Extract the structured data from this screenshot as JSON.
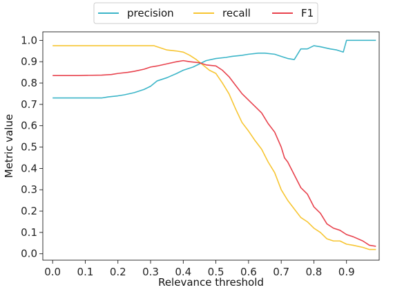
{
  "chart_data": {
    "type": "line",
    "xlabel": "Relevance threshold",
    "ylabel": "Metric value",
    "xlim": [
      -0.03,
      1.0
    ],
    "ylim": [
      -0.03,
      1.04
    ],
    "x_ticks": [
      "0.0",
      "0.1",
      "0.2",
      "0.3",
      "0.4",
      "0.5",
      "0.6",
      "0.7",
      "0.8",
      "0.9"
    ],
    "y_ticks": [
      "0.0",
      "0.1",
      "0.2",
      "0.3",
      "0.4",
      "0.5",
      "0.6",
      "0.7",
      "0.8",
      "0.9",
      "1.0"
    ],
    "grid": false,
    "legend_placement": "top-center",
    "series": [
      {
        "name": "precision",
        "color": "#3bb5c8",
        "points": [
          [
            0.0,
            0.73
          ],
          [
            0.08,
            0.73
          ],
          [
            0.1,
            0.73
          ],
          [
            0.15,
            0.73
          ],
          [
            0.17,
            0.735
          ],
          [
            0.2,
            0.74
          ],
          [
            0.22,
            0.745
          ],
          [
            0.25,
            0.755
          ],
          [
            0.28,
            0.77
          ],
          [
            0.3,
            0.785
          ],
          [
            0.32,
            0.81
          ],
          [
            0.35,
            0.825
          ],
          [
            0.38,
            0.845
          ],
          [
            0.4,
            0.86
          ],
          [
            0.43,
            0.875
          ],
          [
            0.45,
            0.89
          ],
          [
            0.47,
            0.905
          ],
          [
            0.5,
            0.915
          ],
          [
            0.53,
            0.92
          ],
          [
            0.55,
            0.925
          ],
          [
            0.58,
            0.93
          ],
          [
            0.6,
            0.935
          ],
          [
            0.63,
            0.94
          ],
          [
            0.65,
            0.94
          ],
          [
            0.68,
            0.935
          ],
          [
            0.7,
            0.925
          ],
          [
            0.72,
            0.915
          ],
          [
            0.74,
            0.91
          ],
          [
            0.76,
            0.96
          ],
          [
            0.78,
            0.96
          ],
          [
            0.8,
            0.975
          ],
          [
            0.82,
            0.97
          ],
          [
            0.85,
            0.96
          ],
          [
            0.87,
            0.955
          ],
          [
            0.89,
            0.945
          ],
          [
            0.9,
            1.0
          ],
          [
            0.92,
            1.0
          ],
          [
            0.95,
            1.0
          ],
          [
            0.99,
            1.0
          ]
        ]
      },
      {
        "name": "recall",
        "color": "#f7c531",
        "points": [
          [
            0.0,
            0.975
          ],
          [
            0.1,
            0.975
          ],
          [
            0.2,
            0.975
          ],
          [
            0.3,
            0.975
          ],
          [
            0.31,
            0.975
          ],
          [
            0.33,
            0.965
          ],
          [
            0.35,
            0.955
          ],
          [
            0.38,
            0.95
          ],
          [
            0.4,
            0.945
          ],
          [
            0.42,
            0.93
          ],
          [
            0.44,
            0.91
          ],
          [
            0.46,
            0.885
          ],
          [
            0.48,
            0.86
          ],
          [
            0.5,
            0.845
          ],
          [
            0.52,
            0.8
          ],
          [
            0.54,
            0.75
          ],
          [
            0.56,
            0.68
          ],
          [
            0.58,
            0.615
          ],
          [
            0.6,
            0.575
          ],
          [
            0.62,
            0.53
          ],
          [
            0.64,
            0.49
          ],
          [
            0.66,
            0.43
          ],
          [
            0.68,
            0.38
          ],
          [
            0.7,
            0.3
          ],
          [
            0.72,
            0.25
          ],
          [
            0.74,
            0.21
          ],
          [
            0.76,
            0.17
          ],
          [
            0.78,
            0.15
          ],
          [
            0.8,
            0.12
          ],
          [
            0.82,
            0.1
          ],
          [
            0.84,
            0.07
          ],
          [
            0.86,
            0.06
          ],
          [
            0.88,
            0.06
          ],
          [
            0.9,
            0.045
          ],
          [
            0.92,
            0.04
          ],
          [
            0.95,
            0.03
          ],
          [
            0.97,
            0.02
          ],
          [
            0.99,
            0.02
          ]
        ]
      },
      {
        "name": "F1",
        "color": "#e8414c",
        "points": [
          [
            0.0,
            0.835
          ],
          [
            0.08,
            0.835
          ],
          [
            0.1,
            0.836
          ],
          [
            0.15,
            0.837
          ],
          [
            0.18,
            0.84
          ],
          [
            0.2,
            0.845
          ],
          [
            0.23,
            0.85
          ],
          [
            0.25,
            0.855
          ],
          [
            0.28,
            0.865
          ],
          [
            0.3,
            0.875
          ],
          [
            0.32,
            0.88
          ],
          [
            0.35,
            0.89
          ],
          [
            0.38,
            0.9
          ],
          [
            0.4,
            0.905
          ],
          [
            0.42,
            0.9
          ],
          [
            0.45,
            0.895
          ],
          [
            0.47,
            0.885
          ],
          [
            0.5,
            0.88
          ],
          [
            0.52,
            0.86
          ],
          [
            0.54,
            0.83
          ],
          [
            0.56,
            0.79
          ],
          [
            0.58,
            0.75
          ],
          [
            0.6,
            0.72
          ],
          [
            0.62,
            0.69
          ],
          [
            0.64,
            0.66
          ],
          [
            0.66,
            0.61
          ],
          [
            0.68,
            0.57
          ],
          [
            0.7,
            0.5
          ],
          [
            0.71,
            0.45
          ],
          [
            0.72,
            0.43
          ],
          [
            0.74,
            0.37
          ],
          [
            0.76,
            0.31
          ],
          [
            0.78,
            0.28
          ],
          [
            0.8,
            0.22
          ],
          [
            0.82,
            0.19
          ],
          [
            0.84,
            0.14
          ],
          [
            0.86,
            0.12
          ],
          [
            0.88,
            0.11
          ],
          [
            0.9,
            0.09
          ],
          [
            0.92,
            0.08
          ],
          [
            0.95,
            0.06
          ],
          [
            0.97,
            0.04
          ],
          [
            0.99,
            0.035
          ]
        ]
      }
    ]
  }
}
